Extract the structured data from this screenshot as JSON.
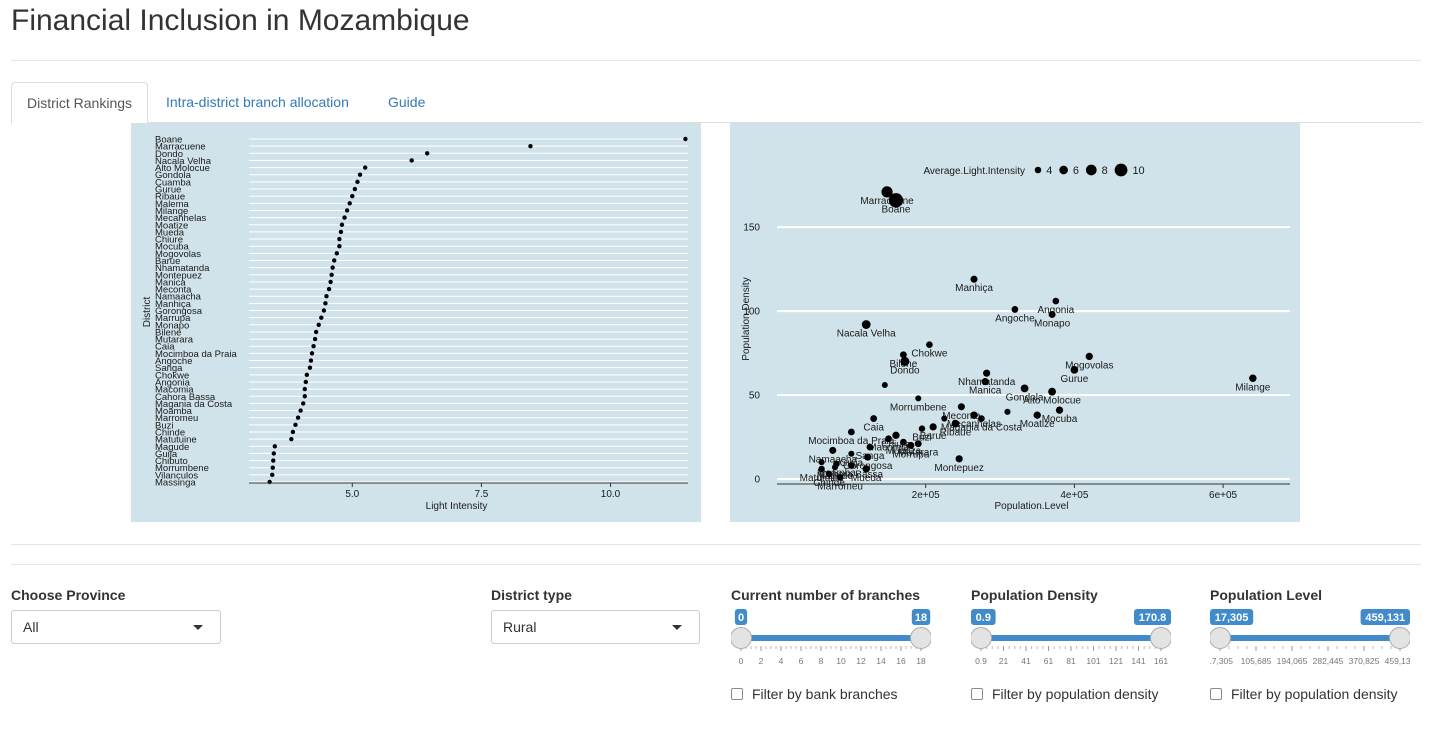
{
  "title": "Financial Inclusion in Mozambique",
  "tabs": [
    "District Rankings",
    "Intra-district branch allocation",
    "Guide"
  ],
  "colors": {
    "panel_bg": "#d1e3ea",
    "accent": "#428bca"
  },
  "chart_data": [
    {
      "type": "scatter",
      "title": "",
      "xlabel": "Light Intensity",
      "ylabel": "District",
      "xlim": [
        3.0,
        11.5
      ],
      "xticks": [
        5.0,
        7.5,
        10.0
      ],
      "xtick_labels": [
        "5.0",
        "7.5",
        "10.0"
      ],
      "categories": [
        "Boane",
        "Marracuene",
        "Dondo",
        "Nacala Velha",
        "Alto Molocue",
        "Gondola",
        "Cuamba",
        "Gurue",
        "Ribaue",
        "Malema",
        "Milange",
        "Mecanhelas",
        "Moatize",
        "Mueda",
        "Chiure",
        "Mocuba",
        "Mogovolas",
        "Barue",
        "Nhamatanda",
        "Montepuez",
        "Manica",
        "Meconta",
        "Namaacha",
        "Manhiça",
        "Gorongosa",
        "Marrupa",
        "Monapo",
        "Bilene",
        "Mutarara",
        "Caia",
        "Mocimboa da Praia",
        "Angoche",
        "Sanga",
        "Chokwe",
        "Angonia",
        "Macomia",
        "Cahora Bassa",
        "Magania da Costa",
        "Moamba",
        "Marromeu",
        "Buzi",
        "Chinde",
        "Matutuine",
        "Magude",
        "Guija",
        "Chibuto",
        "Morrumbene",
        "Vilanculos",
        "Massinga"
      ],
      "values": [
        11.45,
        8.45,
        6.45,
        6.15,
        5.25,
        5.15,
        5.1,
        5.05,
        5.0,
        4.95,
        4.9,
        4.85,
        4.8,
        4.78,
        4.75,
        4.75,
        4.7,
        4.65,
        4.62,
        4.6,
        4.58,
        4.55,
        4.5,
        4.48,
        4.45,
        4.4,
        4.35,
        4.3,
        4.28,
        4.25,
        4.22,
        4.2,
        4.18,
        4.12,
        4.1,
        4.08,
        4.08,
        4.05,
        4.0,
        3.95,
        3.9,
        3.85,
        3.82,
        3.5,
        3.48,
        3.47,
        3.46,
        3.45,
        3.4
      ]
    },
    {
      "type": "scatter",
      "title": "",
      "xlabel": "Population.Level",
      "ylabel": "Population.Density",
      "xlim": [
        0,
        690000
      ],
      "ylim": [
        -3,
        193
      ],
      "xticks": [
        200000,
        400000,
        600000
      ],
      "xtick_labels": [
        "2e+05",
        "4e+05",
        "6e+05"
      ],
      "yticks": [
        0,
        50,
        100,
        150
      ],
      "legend": {
        "title": "Average.Light.Intensity",
        "values": [
          4,
          6,
          8,
          10
        ],
        "placement": "top"
      },
      "points": [
        {
          "label": "Marracuene",
          "x": 148000,
          "y": 171,
          "size": 8.5
        },
        {
          "label": "Boane",
          "x": 160000,
          "y": 166,
          "size": 11.5
        },
        {
          "label": "Manhiça",
          "x": 265000,
          "y": 119,
          "size": 4.5
        },
        {
          "label": "Angonia",
          "x": 375000,
          "y": 106,
          "size": 4.1
        },
        {
          "label": "Angoche",
          "x": 320000,
          "y": 101,
          "size": 4.2
        },
        {
          "label": "Monapo",
          "x": 370000,
          "y": 98,
          "size": 4.4
        },
        {
          "label": "Nacala Velha",
          "x": 120000,
          "y": 92,
          "size": 6.2
        },
        {
          "label": "Chokwe",
          "x": 205000,
          "y": 80,
          "size": 4.1
        },
        {
          "label": "Bilene",
          "x": 170000,
          "y": 74,
          "size": 4.3
        },
        {
          "label": "Dondo",
          "x": 172000,
          "y": 70,
          "size": 6.4
        },
        {
          "label": "Mogovolas",
          "x": 420000,
          "y": 73,
          "size": 4.7
        },
        {
          "label": "Nhamatanda",
          "x": 282000,
          "y": 63,
          "size": 4.6
        },
        {
          "label": "Gurue",
          "x": 400000,
          "y": 65,
          "size": 5.05
        },
        {
          "label": "Milange",
          "x": 640000,
          "y": 60,
          "size": 4.9
        },
        {
          "label": "Manica",
          "x": 280000,
          "y": 58,
          "size": 4.6
        },
        {
          "label": "Gondola",
          "x": 333000,
          "y": 54,
          "size": 5.15
        },
        {
          "label": "Alto Molocue",
          "x": 370000,
          "y": 52,
          "size": 5.25
        },
        {
          "label": "Morrumbene",
          "x": 190000,
          "y": 48,
          "size": 3.5
        },
        {
          "label": "Meconta",
          "x": 248000,
          "y": 43,
          "size": 4.5
        },
        {
          "label": "Mocuba",
          "x": 380000,
          "y": 41,
          "size": 4.75
        },
        {
          "label": "Moatize",
          "x": 350000,
          "y": 38,
          "size": 4.8
        },
        {
          "label": "Mecanhelas",
          "x": 265000,
          "y": 38,
          "size": 4.85
        },
        {
          "label": "Magania da Costa",
          "x": 275000,
          "y": 36,
          "size": 4.05
        },
        {
          "label": "Ribaue",
          "x": 240000,
          "y": 33,
          "size": 5.0
        },
        {
          "label": "Caia",
          "x": 130000,
          "y": 36,
          "size": 4.25
        },
        {
          "label": "Buzi",
          "x": 195000,
          "y": 30,
          "size": 3.9
        },
        {
          "label": "Barue",
          "x": 210000,
          "y": 31,
          "size": 4.65
        },
        {
          "label": "Mocimboa da Praia",
          "x": 100000,
          "y": 28,
          "size": 4.22
        },
        {
          "label": "Chiure",
          "x": 160000,
          "y": 26,
          "size": 4.75
        },
        {
          "label": "Macomia",
          "x": 150000,
          "y": 24,
          "size": 4.08
        },
        {
          "label": "Muanza",
          "x": 170000,
          "y": 22,
          "size": 4.05
        },
        {
          "label": "Mutarara",
          "x": 190000,
          "y": 21,
          "size": 4.28
        },
        {
          "label": "Morrupa",
          "x": 180000,
          "y": 20,
          "size": 4.4
        },
        {
          "label": "Sanga",
          "x": 125000,
          "y": 19,
          "size": 4.18
        },
        {
          "label": "Namaacha",
          "x": 75000,
          "y": 17,
          "size": 4.5
        },
        {
          "label": "Guija",
          "x": 100000,
          "y": 15,
          "size": 3.48
        },
        {
          "label": "Gorongosa",
          "x": 122000,
          "y": 13,
          "size": 4.45
        },
        {
          "label": "Montepuez",
          "x": 245000,
          "y": 12,
          "size": 4.6
        },
        {
          "label": "Moamba",
          "x": 80000,
          "y": 9,
          "size": 4.0
        },
        {
          "label": "Cahora Bassa",
          "x": 100000,
          "y": 8,
          "size": 4.08
        },
        {
          "label": "Magude",
          "x": 78000,
          "y": 7,
          "size": 3.5
        },
        {
          "label": "Mueda",
          "x": 120000,
          "y": 6,
          "size": 4.78
        },
        {
          "label": "Matutuine",
          "x": 60000,
          "y": 6,
          "size": 3.82
        },
        {
          "label": "Chinde",
          "x": 70000,
          "y": 3,
          "size": 3.85
        },
        {
          "label": "Marromeu",
          "x": 85000,
          "y": 1,
          "size": 3.95
        },
        {
          "label": "",
          "x": 145000,
          "y": 56,
          "size": 3.5
        },
        {
          "label": "",
          "x": 225000,
          "y": 36,
          "size": 3.6
        },
        {
          "label": "",
          "x": 310000,
          "y": 40,
          "size": 3.6
        },
        {
          "label": "",
          "x": 60000,
          "y": 10,
          "size": 3.5
        }
      ]
    }
  ],
  "controls": {
    "province": {
      "label": "Choose Province",
      "value": "All"
    },
    "district_type": {
      "label": "District type",
      "value": "Rural"
    },
    "branches": {
      "label": "Current number of branches",
      "min_label": "0",
      "max_label": "18",
      "range_min": 0,
      "range_max": 18,
      "selected_min": 0,
      "selected_max": 18,
      "ticks": [
        "0",
        "2",
        "4",
        "6",
        "8",
        "10",
        "12",
        "14",
        "16",
        "18"
      ],
      "check_label": "Filter by bank branches"
    },
    "density": {
      "label": "Population Density",
      "min_label": "0.9",
      "max_label": "170.8",
      "range_min": 0.9,
      "range_max": 170.8,
      "selected_min": 0.9,
      "selected_max": 170.8,
      "ticks": [
        "0.9",
        "21",
        "41",
        "61",
        "81",
        "101",
        "121",
        "141",
        "161"
      ],
      "check_label": "Filter by population density"
    },
    "level": {
      "label": "Population Level",
      "min_label": "17,305",
      "max_label": "459,131",
      "range_min": 17305,
      "range_max": 459131,
      "selected_min": 17305,
      "selected_max": 459131,
      "ticks": [
        "17,305",
        "105,685",
        "194,065",
        "282,445",
        "370,825",
        "459,131"
      ],
      "check_label": "Filter by population density"
    }
  }
}
